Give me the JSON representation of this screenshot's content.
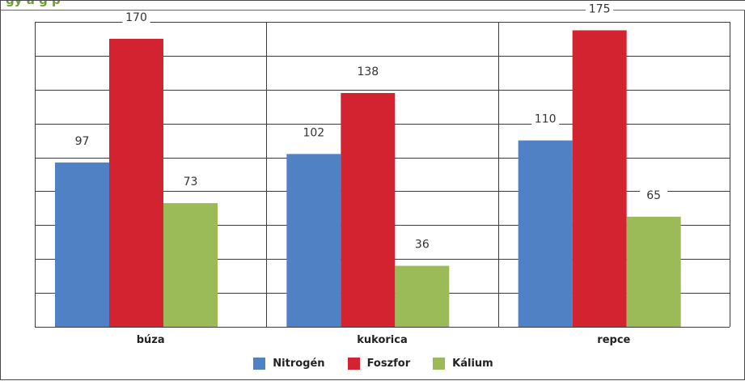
{
  "header": {
    "title_fragment": "gy   a      g     p"
  },
  "chart_data": {
    "type": "bar",
    "categories": [
      "búza",
      "kukorica",
      "repce"
    ],
    "series": [
      {
        "name": "Nitrogén",
        "values": [
          97,
          102,
          110
        ],
        "color": "#4f81c4"
      },
      {
        "name": "Foszfor",
        "values": [
          170,
          138,
          175
        ],
        "color": "#d42330"
      },
      {
        "name": "Kálium",
        "values": [
          73,
          36,
          65
        ],
        "color": "#9bbb59"
      }
    ],
    "ylim": [
      0,
      180
    ],
    "y_gridline_step": 20,
    "grid": true,
    "legend_position": "bottom",
    "data_labels": true
  }
}
